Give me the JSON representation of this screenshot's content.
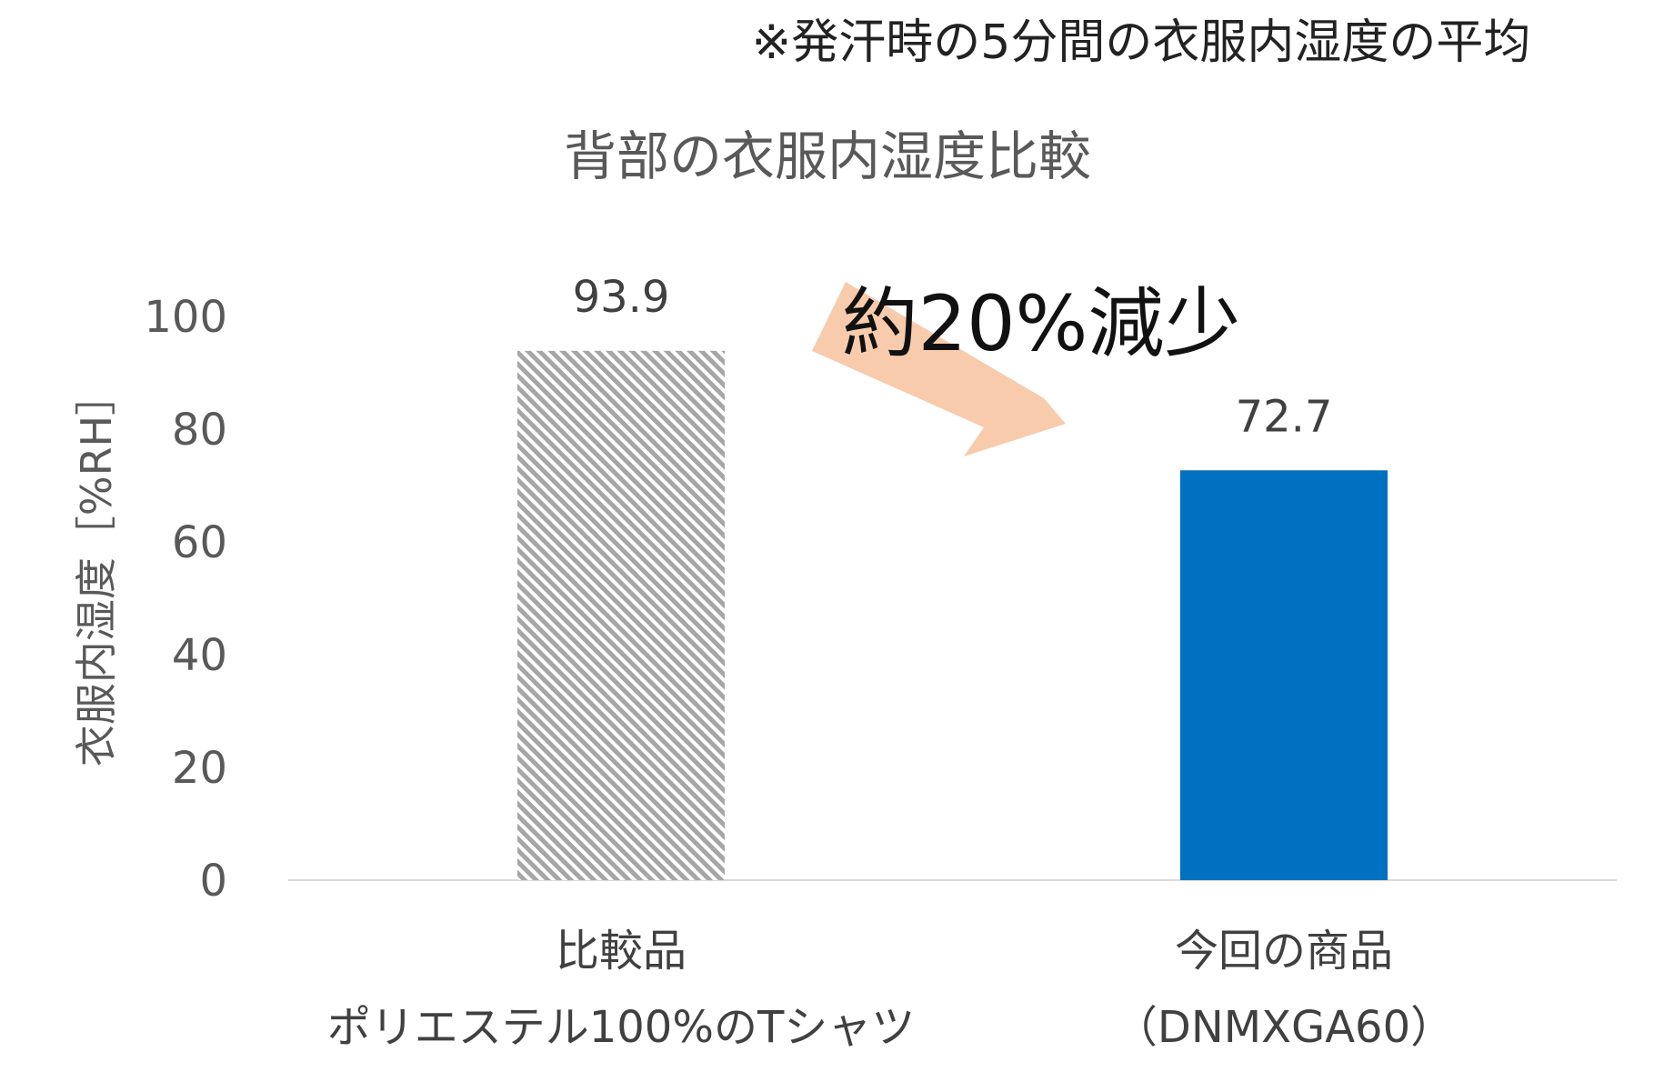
{
  "note": "※発汗時の5分間の衣服内湿度の平均",
  "callout": "約20%減少",
  "chart_data": {
    "type": "bar",
    "title": "背部の衣服内湿度比較",
    "ylabel": "衣服内湿度［%RH］",
    "xlabel": "",
    "ylim": [
      0,
      100
    ],
    "yticks": [
      "0",
      "20",
      "40",
      "60",
      "80",
      "100"
    ],
    "categories": [
      {
        "line1": "比較品",
        "line2": "ポリエステル100%のTシャツ"
      },
      {
        "line1": "今回の商品",
        "line2": "（DNMXGA60）"
      }
    ],
    "values": [
      93.9,
      72.7
    ],
    "value_labels": [
      "93.9",
      "72.7"
    ],
    "bar_styles": [
      "hatched-gray",
      "solid-blue"
    ],
    "colors": {
      "bar2": "#0070C0",
      "hatch": "#A6A6A6",
      "arrow": "#F8CBAD",
      "axis": "#D9D9D9"
    },
    "grid": false,
    "legend": "none"
  }
}
